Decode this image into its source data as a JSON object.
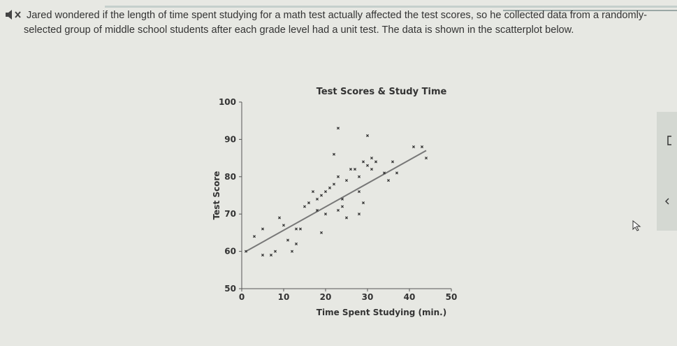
{
  "question": {
    "text_line1": "Jared wondered if the length of time spent studying for a math test actually affected the test scores, so he collected data from a randomly-",
    "text_line2": "selected group of middle school students after each grade level had a unit test. The data is shown in the scatterplot below.",
    "audio_icon": "speaker-icon"
  },
  "chart_data": {
    "type": "scatter",
    "title": "Test Scores & Study Time",
    "xlabel": "Time Spent Studying (min.)",
    "ylabel": "Test Score",
    "xlim": [
      0,
      50
    ],
    "ylim": [
      50,
      100
    ],
    "xticks": [
      0,
      10,
      20,
      30,
      40,
      50
    ],
    "yticks": [
      50,
      60,
      70,
      80,
      90,
      100
    ],
    "trend_line": {
      "x": [
        1,
        44
      ],
      "y": [
        60,
        87
      ]
    },
    "points": [
      {
        "x": 1,
        "y": 60
      },
      {
        "x": 3,
        "y": 64
      },
      {
        "x": 5,
        "y": 66
      },
      {
        "x": 5,
        "y": 59
      },
      {
        "x": 7,
        "y": 59
      },
      {
        "x": 8,
        "y": 60
      },
      {
        "x": 9,
        "y": 69
      },
      {
        "x": 10,
        "y": 67
      },
      {
        "x": 11,
        "y": 63
      },
      {
        "x": 13,
        "y": 62
      },
      {
        "x": 12,
        "y": 60
      },
      {
        "x": 13,
        "y": 66
      },
      {
        "x": 14,
        "y": 66
      },
      {
        "x": 15,
        "y": 72
      },
      {
        "x": 16,
        "y": 73
      },
      {
        "x": 17,
        "y": 76
      },
      {
        "x": 18,
        "y": 71
      },
      {
        "x": 18,
        "y": 74
      },
      {
        "x": 19,
        "y": 75
      },
      {
        "x": 20,
        "y": 76
      },
      {
        "x": 20,
        "y": 70
      },
      {
        "x": 21,
        "y": 77
      },
      {
        "x": 22,
        "y": 78
      },
      {
        "x": 23,
        "y": 80
      },
      {
        "x": 22,
        "y": 86
      },
      {
        "x": 23,
        "y": 71
      },
      {
        "x": 24,
        "y": 72
      },
      {
        "x": 25,
        "y": 69
      },
      {
        "x": 25,
        "y": 79
      },
      {
        "x": 26,
        "y": 82
      },
      {
        "x": 27,
        "y": 82
      },
      {
        "x": 28,
        "y": 80
      },
      {
        "x": 28,
        "y": 76
      },
      {
        "x": 29,
        "y": 84
      },
      {
        "x": 30,
        "y": 83
      },
      {
        "x": 31,
        "y": 82
      },
      {
        "x": 32,
        "y": 84
      },
      {
        "x": 34,
        "y": 81
      },
      {
        "x": 35,
        "y": 79
      },
      {
        "x": 36,
        "y": 84
      },
      {
        "x": 37,
        "y": 81
      },
      {
        "x": 24,
        "y": 74
      },
      {
        "x": 29,
        "y": 73
      },
      {
        "x": 28,
        "y": 70
      },
      {
        "x": 31,
        "y": 85
      },
      {
        "x": 30,
        "y": 91
      },
      {
        "x": 23,
        "y": 93
      },
      {
        "x": 41,
        "y": 88
      },
      {
        "x": 43,
        "y": 88
      },
      {
        "x": 44,
        "y": 85
      },
      {
        "x": 19,
        "y": 65
      }
    ]
  },
  "colors": {
    "background": "#e7e8e3",
    "text": "#333333",
    "axis": "#555555",
    "trend_line": "#777777",
    "marker": "#333333"
  },
  "icons": {
    "cursor": "pointer-cursor-icon",
    "chevron": "chevron-left-icon",
    "bracket": "bracket-icon"
  }
}
